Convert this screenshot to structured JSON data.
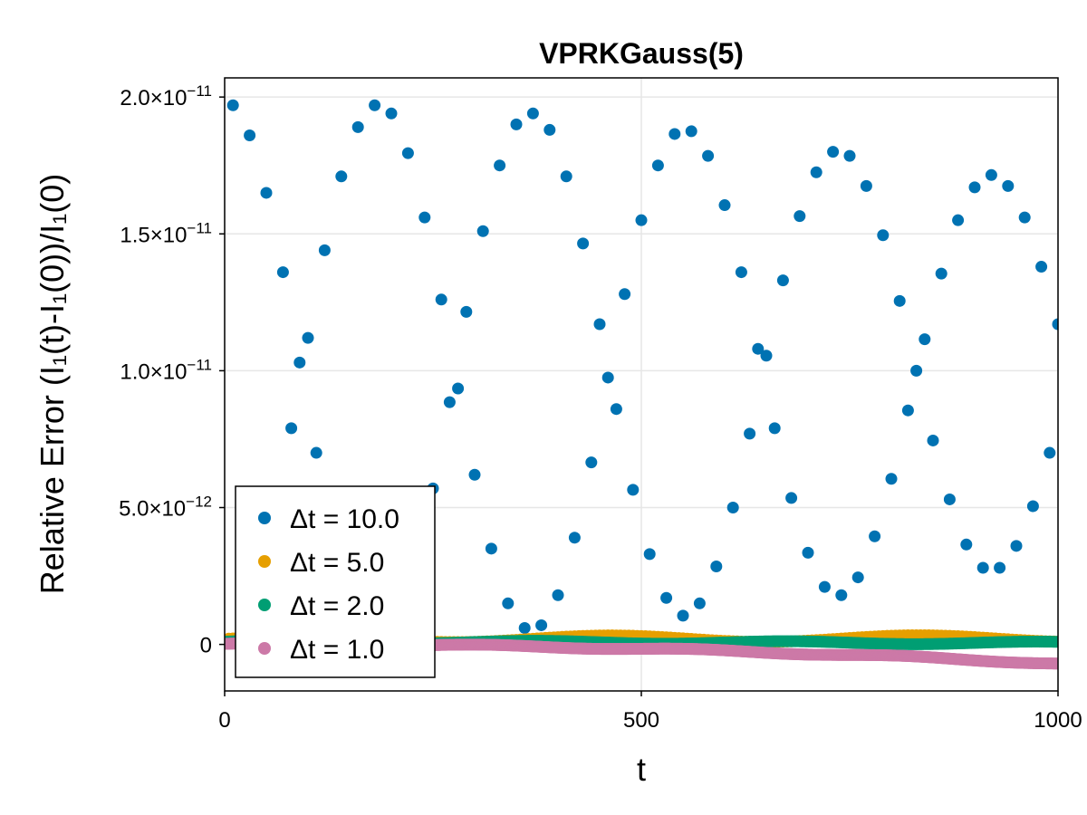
{
  "chart_data": {
    "type": "scatter",
    "title": "VPRKGauss(5)",
    "xlabel": "t",
    "ylabel": "Relative Error (I₁(t)-I₁(0))/I₁(0)",
    "xlim": [
      0,
      1000
    ],
    "ylim": [
      -1.7e-12,
      2.07e-11
    ],
    "x_ticks": [
      {
        "value": 0,
        "label": "0"
      },
      {
        "value": 500,
        "label": "500"
      },
      {
        "value": 1000,
        "label": "1000"
      }
    ],
    "y_ticks": [
      {
        "value": 0,
        "mantissa": "0",
        "exp": ""
      },
      {
        "value": 5e-12,
        "mantissa": "5.0×10",
        "exp": "−12"
      },
      {
        "value": 1e-11,
        "mantissa": "1.0×10",
        "exp": "−11"
      },
      {
        "value": 1.5e-11,
        "mantissa": "1.5×10",
        "exp": "−11"
      },
      {
        "value": 2e-11,
        "mantissa": "2.0×10",
        "exp": "−11"
      }
    ],
    "grid": true,
    "legend_position": "bottom-left",
    "series": [
      {
        "name": "Δt = 10.0",
        "color": "#0072b2",
        "dt": 10,
        "x": [
          10,
          30,
          50,
          70,
          80,
          90,
          100,
          110,
          120,
          140,
          160,
          180,
          200,
          220,
          240,
          250,
          260,
          270,
          280,
          290,
          300,
          310,
          320,
          330,
          340,
          350,
          360,
          370,
          380,
          390,
          400,
          410,
          420,
          430,
          440,
          450,
          460,
          470,
          480,
          490,
          500,
          510,
          520,
          530,
          540,
          550,
          560,
          570,
          580,
          590,
          600,
          610,
          620,
          630,
          640,
          650,
          660,
          670,
          680,
          690,
          700,
          710,
          720,
          730,
          740,
          750,
          760,
          770,
          780,
          790,
          800,
          810,
          820,
          830,
          840,
          850,
          860,
          870,
          880,
          890,
          900,
          910,
          920,
          930,
          940,
          950,
          960,
          970,
          980,
          990,
          1000
        ],
        "y": [
          19.7,
          18.6,
          16.5,
          13.6,
          7.9,
          10.3,
          11.2,
          7.0,
          14.4,
          17.1,
          18.9,
          19.7,
          19.4,
          17.95,
          15.6,
          5.7,
          12.6,
          8.85,
          9.35,
          12.15,
          6.2,
          15.1,
          3.5,
          17.5,
          1.5,
          19.0,
          0.6,
          19.4,
          0.7,
          18.8,
          1.8,
          17.1,
          3.9,
          14.65,
          6.65,
          11.7,
          9.75,
          8.6,
          12.8,
          5.65,
          15.5,
          3.3,
          17.5,
          1.7,
          18.65,
          1.05,
          18.75,
          1.5,
          17.85,
          2.85,
          16.05,
          5.0,
          13.6,
          7.7,
          10.8,
          10.55,
          7.9,
          13.3,
          5.35,
          15.65,
          3.35,
          17.25,
          2.1,
          18.0,
          1.8,
          17.85,
          2.45,
          16.75,
          3.95,
          14.95,
          6.05,
          12.55,
          8.55,
          10.0,
          11.15,
          7.45,
          13.55,
          5.3,
          15.5,
          3.65,
          16.7,
          2.8,
          17.15,
          2.8,
          16.75,
          3.6,
          15.6,
          5.05,
          13.8,
          7.0,
          11.7
        ],
        "y_scale": 1e-12
      },
      {
        "name": "Δt = 5.0",
        "color": "#e69f00",
        "dt": 5,
        "y_scale": 1e-12
      },
      {
        "name": "Δt = 2.0",
        "color": "#009e73",
        "dt": 2,
        "y_scale": 1e-12
      },
      {
        "name": "Δt = 1.0",
        "color": "#cc79a7",
        "dt": 1,
        "y_scale": 1e-12
      }
    ]
  }
}
